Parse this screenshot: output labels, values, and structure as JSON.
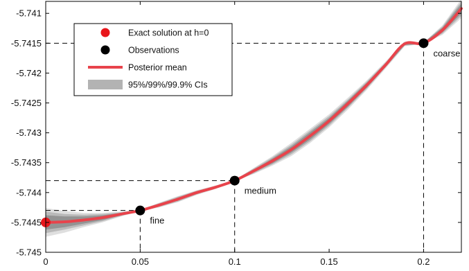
{
  "chart_data": {
    "type": "line",
    "title": "",
    "xlabel": "",
    "ylabel": "",
    "xlim": [
      0,
      0.22
    ],
    "ylim": [
      -5.745,
      -5.7408
    ],
    "xticks": [
      0,
      0.05,
      0.1,
      0.15,
      0.2
    ],
    "xtick_labels": [
      "0",
      "0.05",
      "0.1",
      "0.15",
      "0.2"
    ],
    "yticks": [
      -5.745,
      -5.7445,
      -5.744,
      -5.7435,
      -5.743,
      -5.7425,
      -5.742,
      -5.7415,
      -5.741
    ],
    "ytick_labels": [
      "-5.745",
      "-5.7445",
      "-5.744",
      "-5.7435",
      "-5.743",
      "-5.7425",
      "-5.742",
      "-5.7415",
      "-5.741"
    ],
    "grid": false,
    "legend_position": "top-left",
    "legend": [
      {
        "label": "Exact solution at h=0",
        "kind": "red-dot"
      },
      {
        "label": "Observations",
        "kind": "black-dot"
      },
      {
        "label": "Posterior mean",
        "kind": "red-line"
      },
      {
        "label": "95%/99%/99.9% CIs",
        "kind": "gray-band"
      }
    ],
    "exact_solution": {
      "x": 0,
      "y": -5.7445
    },
    "observations": [
      {
        "x": 0.05,
        "y": -5.7443,
        "label": "fine"
      },
      {
        "x": 0.1,
        "y": -5.7438,
        "label": "medium"
      },
      {
        "x": 0.2,
        "y": -5.7415,
        "label": "coarse"
      }
    ],
    "posterior_mean": {
      "x": [
        0,
        0.01,
        0.02,
        0.03,
        0.04,
        0.05,
        0.06,
        0.07,
        0.08,
        0.09,
        0.1,
        0.11,
        0.12,
        0.13,
        0.14,
        0.15,
        0.16,
        0.17,
        0.18,
        0.19,
        0.2,
        0.21,
        0.22
      ],
      "y": [
        -5.7445,
        -5.74449,
        -5.74446,
        -5.74442,
        -5.74436,
        -5.7443,
        -5.74421,
        -5.74411,
        -5.744,
        -5.74391,
        -5.7438,
        -5.74364,
        -5.74347,
        -5.74328,
        -5.74305,
        -5.7428,
        -5.74251,
        -5.7422,
        -5.74186,
        -5.74151,
        -5.7415,
        -5.74128,
        -5.74092
      ]
    },
    "ci_bands": {
      "x": [
        0,
        0.01,
        0.02,
        0.03,
        0.04,
        0.05,
        0.06,
        0.07,
        0.08,
        0.09,
        0.1,
        0.11,
        0.12,
        0.13,
        0.14,
        0.15,
        0.16,
        0.17,
        0.18,
        0.19,
        0.2,
        0.21,
        0.22
      ],
      "half_widths": {
        "95%": [
          0.00012,
          9e-05,
          6e-05,
          4e-05,
          2e-05,
          1e-05,
          2e-05,
          2e-05,
          2e-05,
          1e-05,
          1e-05,
          2e-05,
          4e-05,
          5e-05,
          6e-05,
          5e-05,
          5e-05,
          4e-05,
          3e-05,
          2e-05,
          1e-05,
          4e-05,
          8e-05
        ],
        "99%": [
          0.00018,
          0.00013,
          9e-05,
          6e-05,
          3e-05,
          1e-05,
          3e-05,
          4e-05,
          3e-05,
          2e-05,
          1e-05,
          4e-05,
          6e-05,
          8e-05,
          9e-05,
          8e-05,
          7e-05,
          6e-05,
          4e-05,
          3e-05,
          1e-05,
          6e-05,
          0.00012
        ],
        "99.9%": [
          0.00024,
          0.00018,
          0.00012,
          8e-05,
          4e-05,
          1e-05,
          4e-05,
          5e-05,
          4e-05,
          3e-05,
          1e-05,
          5e-05,
          8e-05,
          0.00011,
          0.00012,
          0.00011,
          0.0001,
          8e-05,
          6e-05,
          4e-05,
          1e-05,
          8e-05,
          0.00016
        ]
      }
    }
  },
  "colors": {
    "posterior_mean": "#e8434b",
    "exact_point": "#e8161b",
    "observation_point": "#000000",
    "ci_95": "#8c8c8c",
    "ci_99": "#b3b3b3",
    "ci_999": "#d9d9d9"
  }
}
